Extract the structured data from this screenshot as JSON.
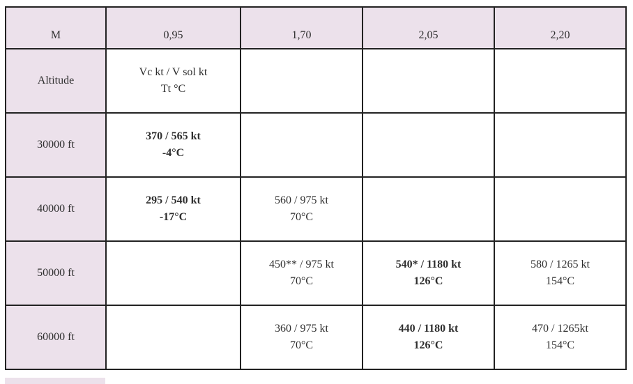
{
  "header": {
    "corner": "M",
    "mach": [
      "0,95",
      "1,70",
      "2,05",
      "2,20"
    ]
  },
  "rows": [
    {
      "label": "Altitude",
      "cells": [
        {
          "l1": "Vc kt / V sol kt",
          "l2": "Tt °C",
          "bold": false
        },
        {
          "l1": "",
          "l2": "",
          "bold": false
        },
        {
          "l1": "",
          "l2": "",
          "bold": false
        },
        {
          "l1": "",
          "l2": "",
          "bold": false
        }
      ]
    },
    {
      "label": "30000 ft",
      "cells": [
        {
          "l1": "370 / 565 kt",
          "l2": "-4°C",
          "bold": true
        },
        {
          "l1": "",
          "l2": "",
          "bold": false
        },
        {
          "l1": "",
          "l2": "",
          "bold": false
        },
        {
          "l1": "",
          "l2": "",
          "bold": false
        }
      ]
    },
    {
      "label": "40000 ft",
      "cells": [
        {
          "l1": "295 / 540 kt",
          "l2": "-17°C",
          "bold": true
        },
        {
          "l1": "560 / 975 kt",
          "l2": "70°C",
          "bold": false
        },
        {
          "l1": "",
          "l2": "",
          "bold": false
        },
        {
          "l1": "",
          "l2": "",
          "bold": false
        }
      ]
    },
    {
      "label": "50000 ft",
      "cells": [
        {
          "l1": "",
          "l2": "",
          "bold": false
        },
        {
          "l1": "450** / 975 kt",
          "l2": "70°C",
          "bold": false
        },
        {
          "l1": "540* / 1180 kt",
          "l2": "126°C",
          "bold": true
        },
        {
          "l1": "580 / 1265 kt",
          "l2": "154°C",
          "bold": false
        }
      ]
    },
    {
      "label": "60000 ft",
      "cells": [
        {
          "l1": "",
          "l2": "",
          "bold": false
        },
        {
          "l1": "360 / 975 kt",
          "l2": "70°C",
          "bold": false
        },
        {
          "l1": "440 / 1180 kt",
          "l2": "126°C",
          "bold": true
        },
        {
          "l1": "470 / 1265kt",
          "l2": "154°C",
          "bold": false
        }
      ]
    }
  ],
  "colors": {
    "header_bg": "#ece1eb",
    "border": "#222222"
  }
}
